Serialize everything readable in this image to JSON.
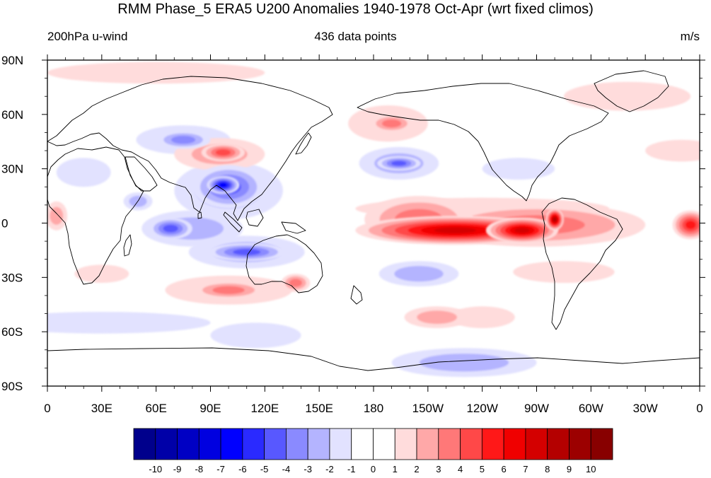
{
  "title": "RMM Phase_5 ERA5 U200 Anomalies 1940-1978 Oct-Apr (wrt fixed climos)",
  "left_label": "200hPa u-wind",
  "center_label": "436 data points",
  "right_label": "m/s",
  "chart_data": {
    "type": "heatmap",
    "projection": "cylindrical-equidistant",
    "x_range_lon": [
      0,
      360
    ],
    "y_range_lat": [
      -90,
      90
    ],
    "x_ticks": [
      {
        "lon": 0,
        "label": "0"
      },
      {
        "lon": 30,
        "label": "30E"
      },
      {
        "lon": 60,
        "label": "60E"
      },
      {
        "lon": 90,
        "label": "90E"
      },
      {
        "lon": 120,
        "label": "120E"
      },
      {
        "lon": 150,
        "label": "150E"
      },
      {
        "lon": 180,
        "label": "180"
      },
      {
        "lon": 210,
        "label": "150W"
      },
      {
        "lon": 240,
        "label": "120W"
      },
      {
        "lon": 270,
        "label": "90W"
      },
      {
        "lon": 300,
        "label": "60W"
      },
      {
        "lon": 330,
        "label": "30W"
      },
      {
        "lon": 360,
        "label": "0"
      }
    ],
    "y_ticks": [
      {
        "lat": 90,
        "label": "90N"
      },
      {
        "lat": 60,
        "label": "60N"
      },
      {
        "lat": 30,
        "label": "30N"
      },
      {
        "lat": 0,
        "label": "0"
      },
      {
        "lat": -30,
        "label": "30S"
      },
      {
        "lat": -60,
        "label": "60S"
      },
      {
        "lat": -90,
        "label": "90S"
      }
    ],
    "colorbar": {
      "levels": [
        -10,
        -9,
        -8,
        -7,
        -6,
        -5,
        -4,
        -3,
        -2,
        -1,
        0,
        1,
        2,
        3,
        4,
        5,
        6,
        7,
        8,
        9,
        10
      ],
      "colors": [
        "#00008c",
        "#0000a8",
        "#0000c4",
        "#0000e0",
        "#0000ff",
        "#2a2aff",
        "#5858ff",
        "#8a8aff",
        "#b4b4ff",
        "#e2e2ff",
        "#ffffff",
        "#ffffff",
        "#ffdcdc",
        "#ffa8a8",
        "#ff7878",
        "#ff4848",
        "#ff1818",
        "#f00000",
        "#d40000",
        "#b40000",
        "#9c0000",
        "#880000"
      ]
    },
    "anomaly_features": [
      {
        "lon": 225,
        "lat": -4,
        "rlon": 55,
        "rlat": 8,
        "value": 7
      },
      {
        "lon": 262,
        "lat": -4,
        "rlon": 20,
        "rlat": 7,
        "value": 7
      },
      {
        "lon": 280,
        "lat": 2,
        "rlon": 5,
        "rlat": 6,
        "value": 8
      },
      {
        "lon": 270,
        "lat": -1,
        "rlon": 60,
        "rlat": 12,
        "value": 3
      },
      {
        "lon": 205,
        "lat": 2,
        "rlon": 30,
        "rlat": 13,
        "value": 3
      },
      {
        "lon": 240,
        "lat": 8,
        "rlon": 70,
        "rlat": 6,
        "value": 1
      },
      {
        "lon": 355,
        "lat": -1,
        "rlon": 10,
        "rlat": 8,
        "value": 5
      },
      {
        "lon": 5,
        "lat": 4,
        "rlon": 6,
        "rlat": 8,
        "value": 2
      },
      {
        "lon": 97,
        "lat": 21,
        "rlon": 9,
        "rlat": 5,
        "value": -6
      },
      {
        "lon": 100,
        "lat": 20,
        "rlon": 20,
        "rlat": 12,
        "value": -4
      },
      {
        "lon": 100,
        "lat": 18,
        "rlon": 30,
        "rlat": 16,
        "value": -2
      },
      {
        "lon": 68,
        "lat": -3,
        "rlon": 12,
        "rlat": 6,
        "value": -4
      },
      {
        "lon": 80,
        "lat": -3,
        "rlon": 28,
        "rlat": 10,
        "value": -2
      },
      {
        "lon": 110,
        "lat": -16,
        "rlon": 22,
        "rlat": 5,
        "value": -4
      },
      {
        "lon": 110,
        "lat": -16,
        "rlon": 32,
        "rlat": 9,
        "value": -2
      },
      {
        "lon": 75,
        "lat": 46,
        "rlon": 15,
        "rlat": 5,
        "value": -3
      },
      {
        "lon": 75,
        "lat": 46,
        "rlon": 26,
        "rlat": 8,
        "value": -1
      },
      {
        "lon": 97,
        "lat": 39,
        "rlon": 12,
        "rlat": 5,
        "value": 4
      },
      {
        "lon": 95,
        "lat": 38,
        "rlon": 25,
        "rlat": 9,
        "value": 2
      },
      {
        "lon": 194,
        "lat": 33,
        "rlon": 12,
        "rlat": 4,
        "value": -4
      },
      {
        "lon": 194,
        "lat": 33,
        "rlon": 22,
        "rlat": 9,
        "value": -2
      },
      {
        "lon": 190,
        "lat": 55,
        "rlon": 12,
        "rlat": 5,
        "value": 3
      },
      {
        "lon": 188,
        "lat": 55,
        "rlon": 22,
        "rlat": 10,
        "value": 1
      },
      {
        "lon": 100,
        "lat": -37,
        "rlon": 20,
        "rlat": 5,
        "value": 3
      },
      {
        "lon": 100,
        "lat": -37,
        "rlon": 35,
        "rlat": 8,
        "value": 1
      },
      {
        "lon": 137,
        "lat": -33,
        "rlon": 8,
        "rlat": 5,
        "value": 3
      },
      {
        "lon": 205,
        "lat": -28,
        "rlon": 22,
        "rlat": 7,
        "value": -2
      },
      {
        "lon": 215,
        "lat": -52,
        "rlon": 18,
        "rlat": 6,
        "value": 2
      },
      {
        "lon": 240,
        "lat": -52,
        "rlon": 18,
        "rlat": 6,
        "value": 1
      },
      {
        "lon": 285,
        "lat": -27,
        "rlon": 28,
        "rlat": 6,
        "value": 1
      },
      {
        "lon": 230,
        "lat": -77,
        "rlon": 40,
        "rlat": 8,
        "value": -2
      },
      {
        "lon": 115,
        "lat": -62,
        "rlon": 25,
        "rlat": 7,
        "value": -1
      },
      {
        "lon": 30,
        "lat": -55,
        "rlon": 60,
        "rlat": 6,
        "value": -1
      },
      {
        "lon": 60,
        "lat": 83,
        "rlon": 60,
        "rlat": 6,
        "value": 1
      },
      {
        "lon": 320,
        "lat": 70,
        "rlon": 35,
        "rlat": 8,
        "value": 1
      },
      {
        "lon": 20,
        "lat": 28,
        "rlon": 15,
        "rlat": 8,
        "value": -1
      },
      {
        "lon": 50,
        "lat": 12,
        "rlon": 8,
        "rlat": 5,
        "value": -2
      },
      {
        "lon": 30,
        "lat": -28,
        "rlon": 15,
        "rlat": 5,
        "value": 1
      },
      {
        "lon": 260,
        "lat": 30,
        "rlon": 20,
        "rlat": 6,
        "value": -1
      },
      {
        "lon": 350,
        "lat": 40,
        "rlon": 20,
        "rlat": 6,
        "value": 1
      }
    ]
  }
}
